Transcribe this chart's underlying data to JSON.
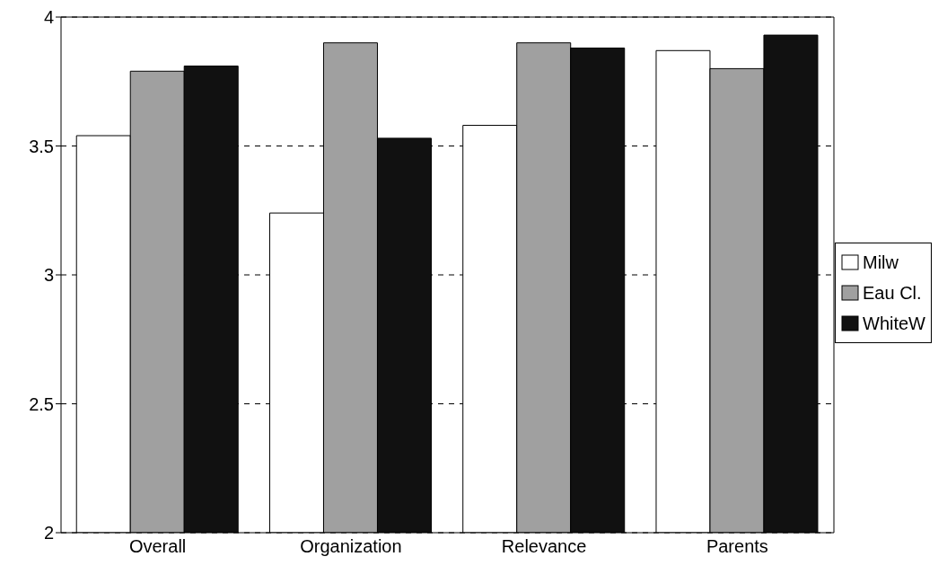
{
  "chart_data": {
    "type": "bar",
    "categories": [
      "Overall",
      "Organization",
      "Relevance",
      "Parents"
    ],
    "series": [
      {
        "name": "Milw",
        "color": "#ffffff",
        "values": [
          3.54,
          3.24,
          3.58,
          3.87
        ]
      },
      {
        "name": "Eau Cl.",
        "color": "#a0a0a0",
        "values": [
          3.79,
          3.9,
          3.9,
          3.8
        ]
      },
      {
        "name": "WhiteW",
        "color": "#111111",
        "values": [
          3.81,
          3.53,
          3.88,
          3.93
        ]
      }
    ],
    "ylim": [
      2,
      4
    ],
    "yticks": [
      2,
      2.5,
      3,
      3.5,
      4
    ],
    "grid": "y",
    "legend": "right"
  }
}
